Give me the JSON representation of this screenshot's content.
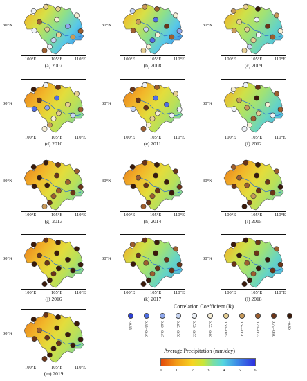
{
  "panels": [
    {
      "caption": "(a) 2007",
      "map_style": "blue-mix",
      "dots": [
        4,
        6,
        6,
        5,
        8,
        5,
        2,
        6,
        8,
        4,
        6,
        3,
        7,
        4,
        8
      ]
    },
    {
      "caption": "(b) 2008",
      "map_style": "blue-mix",
      "dots": [
        3,
        7,
        8,
        5,
        7,
        1,
        9,
        3,
        2,
        8,
        5,
        1,
        8,
        5,
        6
      ]
    },
    {
      "caption": "(c) 2009",
      "map_style": "green",
      "dots": [
        7,
        6,
        10,
        7,
        6,
        4,
        9,
        6,
        5,
        7,
        4,
        6,
        8,
        3,
        6
      ]
    },
    {
      "caption": "(d) 2010",
      "map_style": "orange",
      "dots": [
        10,
        4,
        9,
        6,
        9,
        1,
        6,
        2,
        8,
        1,
        6,
        5,
        3,
        7,
        5
      ]
    },
    {
      "caption": "(e) 2011",
      "map_style": "orange",
      "dots": [
        9,
        4,
        8,
        6,
        9,
        1,
        1,
        9,
        4,
        3,
        5,
        6,
        4,
        5,
        8
      ]
    },
    {
      "caption": "(f) 2012",
      "map_style": "green",
      "dots": [
        5,
        4,
        9,
        8,
        7,
        10,
        5,
        7,
        8,
        4,
        6,
        8,
        4,
        5,
        4
      ]
    },
    {
      "caption": "(g) 2013",
      "map_style": "orange",
      "dots": [
        10,
        10,
        9,
        8,
        10,
        9,
        8,
        10,
        9,
        10,
        8,
        8,
        9,
        9,
        7
      ]
    },
    {
      "caption": "(h) 2014",
      "map_style": "orange",
      "dots": [
        10,
        9,
        10,
        9,
        8,
        10,
        10,
        9,
        9,
        10,
        9,
        8,
        10,
        9,
        8
      ]
    },
    {
      "caption": "(i) 2015",
      "map_style": "orange",
      "dots": [
        8,
        9,
        10,
        8,
        8,
        10,
        9,
        8,
        10,
        9,
        9,
        7,
        9,
        9,
        10
      ]
    },
    {
      "caption": "(j) 2016",
      "map_style": "orange",
      "dots": [
        10,
        9,
        10,
        10,
        9,
        10,
        10,
        9,
        10,
        10,
        10,
        9,
        10,
        10,
        10
      ]
    },
    {
      "caption": "(k) 2017",
      "map_style": "green",
      "dots": [
        8,
        9,
        10,
        8,
        9,
        10,
        9,
        8,
        9,
        10,
        9,
        8,
        9,
        10,
        10
      ]
    },
    {
      "caption": "(l) 2018",
      "map_style": "green",
      "dots": [
        10,
        10,
        9,
        8,
        10,
        9,
        10,
        8,
        9,
        9,
        10,
        8,
        9,
        10,
        10
      ]
    },
    {
      "caption": "(m) 2019",
      "map_style": "orange",
      "dots": [
        10,
        9,
        10,
        10,
        8,
        10,
        10,
        9,
        10,
        9,
        9,
        10,
        10,
        10,
        9
      ]
    }
  ],
  "axes": {
    "lat_label": "30°N",
    "lon_labels": [
      "100°E",
      "105°E",
      "110°E"
    ]
  },
  "legend": {
    "title": "Correlation Coefficient (R)",
    "classes": [
      "<0.35",
      "0.35 - 0.40",
      "0.40 - 0.45",
      "0.45 - 0.50",
      "0.50 - 0.55",
      "0.55 - 0.60",
      "0.60 - 0.65",
      "0.65 - 0.70",
      "0.70 - 0.75",
      "0.75 - 0.80",
      ">0.80"
    ],
    "class_colors": [
      "#2c3fd8",
      "#4e6ee6",
      "#8fa8ee",
      "#c8d6f4",
      "#eef2f8",
      "#f7efd6",
      "#e7cf93",
      "#c89a5a",
      "#9d5e2f",
      "#6b3417",
      "#3a1a0a"
    ]
  },
  "colorbar": {
    "title": "Average Precipitation (mm/day)",
    "ticks": [
      "0",
      "1",
      "2",
      "3",
      "4",
      "5",
      "6"
    ]
  }
}
